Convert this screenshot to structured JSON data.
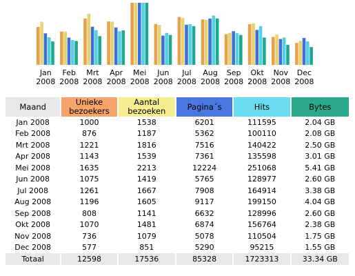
{
  "colors": {
    "unique_visitors": "#e8a04a",
    "visits": "#e8d270",
    "pages": "#3f6fd8",
    "hits": "#55d0e0",
    "bytes": "#1fa890"
  },
  "chart_data": {
    "type": "bar",
    "categories": [
      "Jan 2008",
      "Feb 2008",
      "Mrt 2008",
      "Apr 2008",
      "Mei 2008",
      "Jun 2008",
      "Jul 2008",
      "Aug 2008",
      "Sep 2008",
      "Okt 2008",
      "Nov 2008",
      "Dec 2008"
    ],
    "category_labels": [
      [
        "Jan",
        "2008"
      ],
      [
        "Feb",
        "2008"
      ],
      [
        "Mrt",
        "2008"
      ],
      [
        "Apr",
        "2008"
      ],
      [
        "Mei",
        "2008"
      ],
      [
        "Jun",
        "2008"
      ],
      [
        "Jul",
        "2008"
      ],
      [
        "Aug",
        "2008"
      ],
      [
        "Sep",
        "2008"
      ],
      [
        "Okt",
        "2008"
      ],
      [
        "Nov",
        "2008"
      ],
      [
        "Dec",
        "2008"
      ]
    ],
    "series": [
      {
        "name": "Unieke bezoekers",
        "values": [
          1000,
          876,
          1221,
          1143,
          1635,
          1075,
          1261,
          1196,
          808,
          1070,
          736,
          577
        ]
      },
      {
        "name": "Aantal bezoeken",
        "values": [
          1538,
          1187,
          1816,
          1539,
          2213,
          1419,
          1667,
          1605,
          1141,
          1481,
          1079,
          851
        ]
      },
      {
        "name": "Pagina´s",
        "values": [
          6201,
          5362,
          7516,
          7361,
          12224,
          5765,
          7908,
          9117,
          6632,
          6874,
          5078,
          5290
        ]
      },
      {
        "name": "Hits",
        "values": [
          111595,
          100110,
          140422,
          135598,
          251068,
          128977,
          164914,
          199150,
          128996,
          156764,
          110504,
          95215
        ]
      },
      {
        "name": "Bytes",
        "values": [
          "2.04 GB",
          "2.08 GB",
          "2.50 GB",
          "3.01 GB",
          "5.41 GB",
          "2.60 GB",
          "3.38 GB",
          "4.04 GB",
          "2.60 GB",
          "2.38 GB",
          "1.75 GB",
          "1.55 GB"
        ]
      }
    ]
  },
  "table": {
    "headers": [
      "Maand",
      "Unieke bezoekers",
      "Aantal bezoeken",
      "Pagina´s",
      "Hits",
      "Bytes"
    ],
    "rows": [
      [
        "Jan 2008",
        "1000",
        "1538",
        "6201",
        "111595",
        "2.04 GB"
      ],
      [
        "Feb 2008",
        "876",
        "1187",
        "5362",
        "100110",
        "2.08 GB"
      ],
      [
        "Mrt 2008",
        "1221",
        "1816",
        "7516",
        "140422",
        "2.50 GB"
      ],
      [
        "Apr 2008",
        "1143",
        "1539",
        "7361",
        "135598",
        "3.01 GB"
      ],
      [
        "Mei 2008",
        "1635",
        "2213",
        "12224",
        "251068",
        "5.41 GB"
      ],
      [
        "Jun 2008",
        "1075",
        "1419",
        "5765",
        "128977",
        "2.60 GB"
      ],
      [
        "Jul 2008",
        "1261",
        "1667",
        "7908",
        "164914",
        "3.38 GB"
      ],
      [
        "Aug 2008",
        "1196",
        "1605",
        "9117",
        "199150",
        "4.04 GB"
      ],
      [
        "Sep 2008",
        "808",
        "1141",
        "6632",
        "128996",
        "2.60 GB"
      ],
      [
        "Okt 2008",
        "1070",
        "1481",
        "6874",
        "156764",
        "2.38 GB"
      ],
      [
        "Nov 2008",
        "736",
        "1079",
        "5078",
        "110504",
        "1.75 GB"
      ],
      [
        "Dec 2008",
        "577",
        "851",
        "5290",
        "95215",
        "1.55 GB"
      ]
    ],
    "total": [
      "Totaal",
      "12598",
      "17536",
      "85328",
      "1723313",
      "33.34 GB"
    ]
  }
}
